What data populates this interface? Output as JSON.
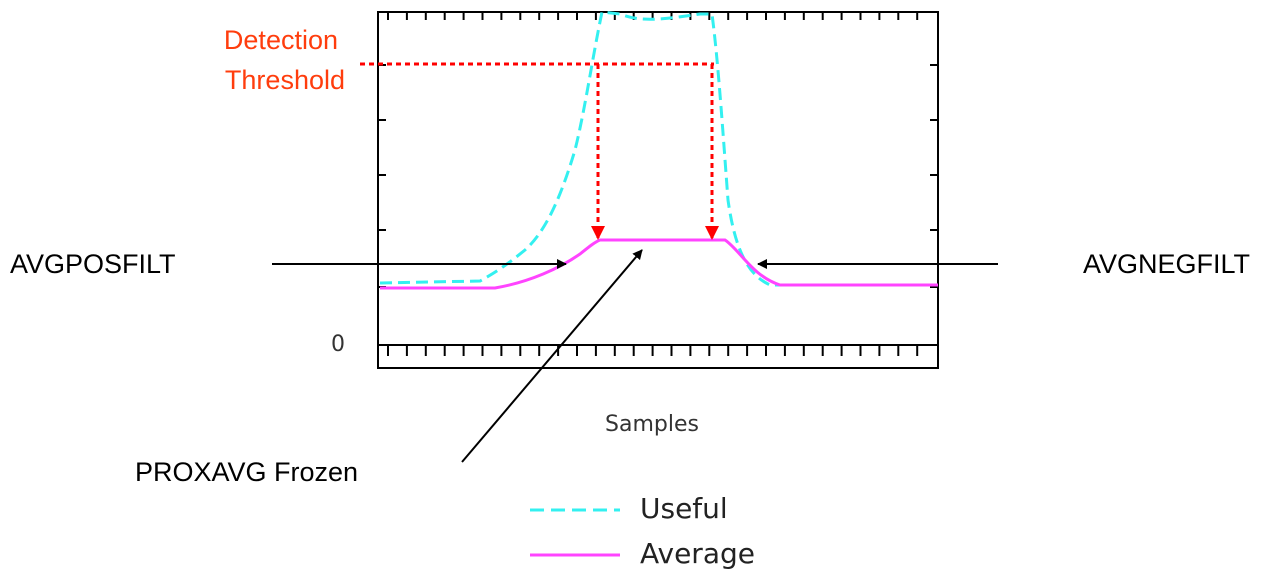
{
  "threshold_label": [
    "Detection",
    "Threshold"
  ],
  "labels": {
    "avg_pos": "AVGPOSFILT",
    "avg_neg": "AVGNEGFILT",
    "frozen": "PROXAVG Frozen"
  },
  "axis": {
    "zero": "0",
    "x_label": "Samples"
  },
  "legend": [
    "Useful",
    "Average"
  ]
}
